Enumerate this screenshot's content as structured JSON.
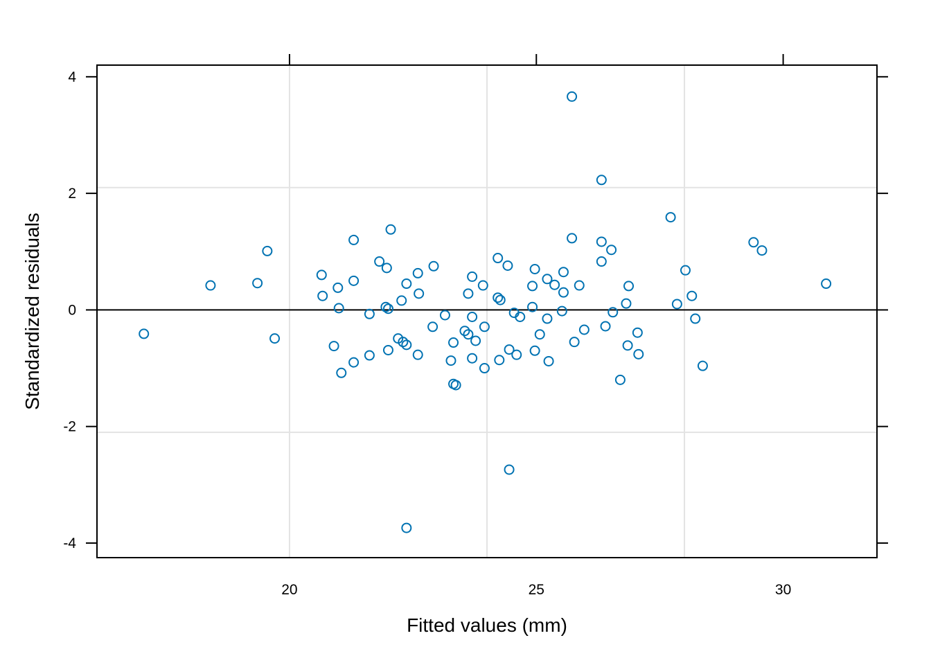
{
  "chart_data": {
    "type": "scatter",
    "title": "",
    "xlabel": "Fitted values (mm)",
    "ylabel": "Standardized residuals",
    "xlim": [
      16.1,
      31.9
    ],
    "ylim": [
      -4.25,
      4.2
    ],
    "x_ticks": [
      20,
      25,
      30
    ],
    "x_tick_labels": [
      "20",
      "25",
      "30"
    ],
    "y_ticks": [
      -4,
      -2,
      0,
      2,
      4
    ],
    "y_tick_labels": [
      "-4",
      "-2",
      "0",
      "2",
      "4"
    ],
    "grid": true,
    "grid_x": [
      20,
      24,
      28
    ],
    "grid_y": [
      -2.1,
      2.1
    ],
    "reference_line_y": 0,
    "point_color": "#0072B2",
    "points": [
      {
        "x": 17.05,
        "y": -0.41
      },
      {
        "x": 18.4,
        "y": 0.42
      },
      {
        "x": 19.35,
        "y": 0.46
      },
      {
        "x": 19.55,
        "y": 1.01
      },
      {
        "x": 19.7,
        "y": -0.49
      },
      {
        "x": 20.65,
        "y": 0.6
      },
      {
        "x": 20.67,
        "y": 0.24
      },
      {
        "x": 20.9,
        "y": -0.62
      },
      {
        "x": 20.98,
        "y": 0.38
      },
      {
        "x": 21.0,
        "y": 0.03
      },
      {
        "x": 21.05,
        "y": -1.08
      },
      {
        "x": 21.3,
        "y": 1.2
      },
      {
        "x": 21.3,
        "y": 0.5
      },
      {
        "x": 21.3,
        "y": -0.9
      },
      {
        "x": 21.62,
        "y": -0.07
      },
      {
        "x": 21.62,
        "y": -0.78
      },
      {
        "x": 21.82,
        "y": 0.83
      },
      {
        "x": 21.97,
        "y": 0.72
      },
      {
        "x": 21.95,
        "y": 0.05
      },
      {
        "x": 22.0,
        "y": 0.02
      },
      {
        "x": 22.0,
        "y": -0.69
      },
      {
        "x": 22.05,
        "y": 1.38
      },
      {
        "x": 22.2,
        "y": -0.49
      },
      {
        "x": 22.27,
        "y": 0.16
      },
      {
        "x": 22.3,
        "y": -0.55
      },
      {
        "x": 22.37,
        "y": 0.45
      },
      {
        "x": 22.37,
        "y": -0.6
      },
      {
        "x": 22.37,
        "y": -3.74
      },
      {
        "x": 22.6,
        "y": 0.63
      },
      {
        "x": 22.62,
        "y": 0.28
      },
      {
        "x": 22.6,
        "y": -0.77
      },
      {
        "x": 22.9,
        "y": -0.29
      },
      {
        "x": 22.92,
        "y": 0.75
      },
      {
        "x": 23.15,
        "y": -0.09
      },
      {
        "x": 23.27,
        "y": -0.87
      },
      {
        "x": 23.32,
        "y": -0.56
      },
      {
        "x": 23.32,
        "y": -1.27
      },
      {
        "x": 23.37,
        "y": -1.29
      },
      {
        "x": 23.55,
        "y": -0.36
      },
      {
        "x": 23.62,
        "y": 0.28
      },
      {
        "x": 23.62,
        "y": -0.42
      },
      {
        "x": 23.7,
        "y": 0.57
      },
      {
        "x": 23.7,
        "y": -0.12
      },
      {
        "x": 23.7,
        "y": -0.83
      },
      {
        "x": 23.77,
        "y": -0.53
      },
      {
        "x": 23.92,
        "y": 0.42
      },
      {
        "x": 23.95,
        "y": -0.29
      },
      {
        "x": 23.95,
        "y": -1.0
      },
      {
        "x": 24.22,
        "y": 0.89
      },
      {
        "x": 24.22,
        "y": 0.21
      },
      {
        "x": 24.25,
        "y": -0.86
      },
      {
        "x": 24.27,
        "y": 0.17
      },
      {
        "x": 24.42,
        "y": 0.76
      },
      {
        "x": 24.45,
        "y": -0.68
      },
      {
        "x": 24.45,
        "y": -2.74
      },
      {
        "x": 24.55,
        "y": -0.05
      },
      {
        "x": 24.6,
        "y": -0.77
      },
      {
        "x": 24.67,
        "y": -0.12
      },
      {
        "x": 24.92,
        "y": 0.41
      },
      {
        "x": 24.92,
        "y": 0.05
      },
      {
        "x": 24.97,
        "y": 0.7
      },
      {
        "x": 24.97,
        "y": -0.7
      },
      {
        "x": 25.07,
        "y": -0.42
      },
      {
        "x": 25.22,
        "y": 0.53
      },
      {
        "x": 25.22,
        "y": -0.15
      },
      {
        "x": 25.25,
        "y": -0.88
      },
      {
        "x": 25.37,
        "y": 0.43
      },
      {
        "x": 25.52,
        "y": -0.02
      },
      {
        "x": 25.55,
        "y": 0.65
      },
      {
        "x": 25.55,
        "y": 0.3
      },
      {
        "x": 25.72,
        "y": 3.66
      },
      {
        "x": 25.72,
        "y": 1.23
      },
      {
        "x": 25.77,
        "y": -0.55
      },
      {
        "x": 25.87,
        "y": 0.42
      },
      {
        "x": 25.97,
        "y": -0.34
      },
      {
        "x": 26.32,
        "y": 2.23
      },
      {
        "x": 26.32,
        "y": 1.17
      },
      {
        "x": 26.32,
        "y": 0.83
      },
      {
        "x": 26.4,
        "y": -0.28
      },
      {
        "x": 26.52,
        "y": 1.03
      },
      {
        "x": 26.55,
        "y": -0.04
      },
      {
        "x": 26.7,
        "y": -1.2
      },
      {
        "x": 26.82,
        "y": 0.11
      },
      {
        "x": 26.85,
        "y": -0.61
      },
      {
        "x": 26.87,
        "y": 0.41
      },
      {
        "x": 27.05,
        "y": -0.39
      },
      {
        "x": 27.07,
        "y": -0.76
      },
      {
        "x": 27.72,
        "y": 1.59
      },
      {
        "x": 27.85,
        "y": 0.1
      },
      {
        "x": 28.02,
        "y": 0.68
      },
      {
        "x": 28.15,
        "y": 0.24
      },
      {
        "x": 28.22,
        "y": -0.15
      },
      {
        "x": 28.37,
        "y": -0.96
      },
      {
        "x": 29.4,
        "y": 1.16
      },
      {
        "x": 29.57,
        "y": 1.02
      },
      {
        "x": 30.87,
        "y": 0.45
      }
    ]
  }
}
